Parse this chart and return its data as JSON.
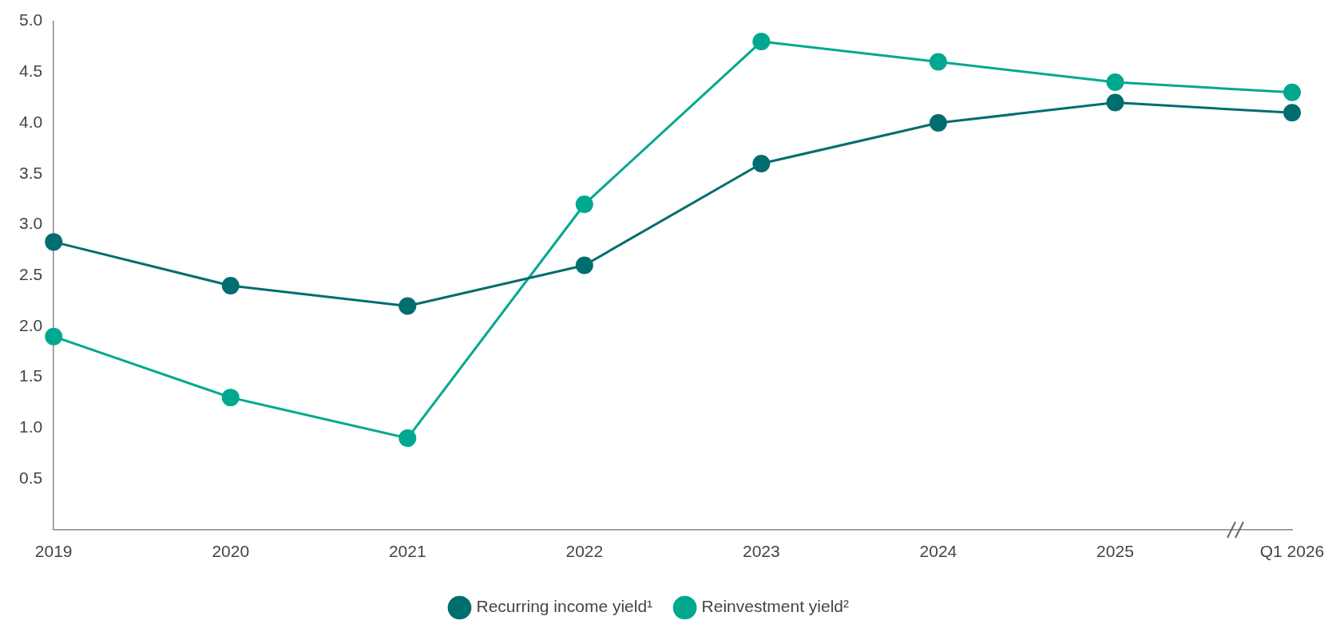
{
  "chart_data": {
    "type": "line",
    "categories": [
      "2019",
      "2020",
      "2021",
      "2022",
      "2023",
      "2024",
      "2025",
      "Q1 2026"
    ],
    "series": [
      {
        "name": "Recurring income yield¹",
        "color": "#006d6f",
        "values": [
          2.83,
          2.4,
          2.2,
          2.6,
          3.6,
          4.0,
          4.2,
          4.1
        ]
      },
      {
        "name": "Reinvestment yield²",
        "color": "#00a88f",
        "values": [
          1.9,
          1.3,
          0.9,
          3.2,
          4.8,
          4.6,
          4.4,
          4.3
        ]
      }
    ],
    "ylim": [
      0,
      5
    ],
    "yticks": [
      0.5,
      {
        "value": 1,
        "label": "1.0"
      },
      1.5,
      {
        "value": 2,
        "label": "2.0"
      },
      2.5,
      {
        "value": 3,
        "label": "3.0"
      },
      3.5,
      {
        "value": 4,
        "label": "4.0"
      },
      4.5,
      {
        "value": 5,
        "label": "5.0"
      }
    ],
    "grid": false,
    "legend": "bottom",
    "marker": "circle",
    "line_style": "solid"
  }
}
